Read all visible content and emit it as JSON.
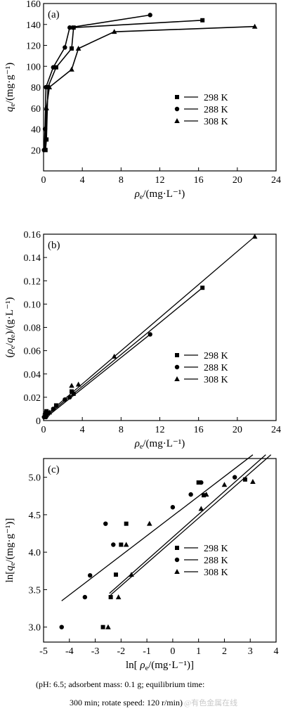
{
  "chart_data": [
    {
      "panel": "(a)",
      "type": "line",
      "xlabel": "ρ_e/(mg·L⁻¹)",
      "ylabel": "q_e/(mg·g⁻¹)",
      "xlim": [
        0,
        24
      ],
      "ylim": [
        0,
        160
      ],
      "xticks": [
        0,
        4,
        8,
        12,
        16,
        20,
        24
      ],
      "yticks": [
        20,
        40,
        60,
        80,
        100,
        120,
        140,
        160
      ],
      "legend": "center-right",
      "series": [
        {
          "name": "298 K",
          "marker": "square",
          "x": [
            0.2,
            0.3,
            0.45,
            1.3,
            2.9,
            3.1,
            16.4
          ],
          "y": [
            20,
            30,
            80,
            99,
            117,
            137,
            144
          ]
        },
        {
          "name": "288 K",
          "marker": "circle",
          "x": [
            0.05,
            0.15,
            0.25,
            1.0,
            2.2,
            2.7,
            11.0
          ],
          "y": [
            20,
            40,
            80,
            99,
            118,
            137,
            149
          ]
        },
        {
          "name": "308 K",
          "marker": "triangle",
          "x": [
            0.15,
            0.3,
            0.6,
            2.9,
            3.6,
            7.3,
            21.8
          ],
          "y": [
            20,
            60,
            80,
            97,
            117,
            133,
            138
          ]
        }
      ]
    },
    {
      "panel": "(b)",
      "type": "scatter",
      "xlabel": "ρ_e/(mg·L⁻¹)",
      "ylabel": "(ρ_e/q_e)/(g·L⁻¹)",
      "xlim": [
        0,
        24
      ],
      "ylim": [
        0,
        0.16
      ],
      "xticks": [
        0,
        4,
        8,
        12,
        16,
        20,
        24
      ],
      "yticks": [
        "0",
        "0.02",
        "0.04",
        "0.06",
        "0.08",
        "0.10",
        "0.12",
        "0.14",
        "0.16"
      ],
      "legend": "center-right",
      "series": [
        {
          "name": "298 K",
          "marker": "square",
          "x": [
            0.2,
            0.3,
            0.45,
            1.3,
            2.9,
            3.1,
            16.4
          ],
          "y": [
            0.005,
            0.008,
            0.006,
            0.013,
            0.025,
            0.023,
            0.114
          ],
          "fit": [
            [
              0,
              0.002
            ],
            [
              16.4,
              0.114
            ]
          ]
        },
        {
          "name": "288 K",
          "marker": "circle",
          "x": [
            0.05,
            0.15,
            0.25,
            1.0,
            2.2,
            2.7,
            11.0
          ],
          "y": [
            0.003,
            0.004,
            0.003,
            0.01,
            0.018,
            0.02,
            0.074
          ],
          "fit": [
            [
              0,
              0.001
            ],
            [
              11.0,
              0.074
            ]
          ]
        },
        {
          "name": "308 K",
          "marker": "triangle",
          "x": [
            0.15,
            0.3,
            0.6,
            2.9,
            3.6,
            7.3,
            21.8
          ],
          "y": [
            0.007,
            0.005,
            0.007,
            0.03,
            0.031,
            0.055,
            0.158
          ],
          "fit": [
            [
              0,
              0.003
            ],
            [
              21.8,
              0.158
            ]
          ]
        }
      ]
    },
    {
      "panel": "(c)",
      "type": "scatter",
      "xlabel": "ln[ ρ_e/(mg·L⁻¹)]",
      "ylabel": "ln[q_e/(mg·g⁻¹)]",
      "xlim": [
        -5,
        4
      ],
      "ylim": [
        2.8,
        5.25
      ],
      "xticks": [
        -5,
        -4,
        -3,
        -2,
        -1,
        0,
        1,
        2,
        3,
        4
      ],
      "yticks": [
        "3.0",
        "3.5",
        "4.0",
        "4.5",
        "5.0"
      ],
      "legend": "center-right",
      "series": [
        {
          "name": "298 K",
          "marker": "square",
          "x": [
            -2.7,
            -2.4,
            -2.2,
            -2.0,
            -1.8,
            1.2,
            1.0,
            2.8
          ],
          "y": [
            3.0,
            3.4,
            3.7,
            4.1,
            4.38,
            4.76,
            4.93,
            4.97
          ],
          "fit": [
            [
              -2.45,
              3.45
            ],
            [
              3.6,
              5.3
            ]
          ]
        },
        {
          "name": "288 K",
          "marker": "circle",
          "x": [
            -4.3,
            -3.4,
            -3.2,
            -2.6,
            -2.3,
            0,
            0.7,
            1.1,
            2.4
          ],
          "y": [
            3.0,
            3.4,
            3.69,
            4.38,
            4.1,
            4.6,
            4.77,
            4.93,
            5.0
          ],
          "fit": [
            [
              -4.3,
              3.35
            ],
            [
              3.1,
              5.3
            ]
          ]
        },
        {
          "name": "308 K",
          "marker": "triangle",
          "x": [
            -2.5,
            -2.1,
            -1.6,
            -1.8,
            -0.9,
            1.1,
            1.3,
            2.0,
            3.1
          ],
          "y": [
            3.0,
            3.4,
            3.7,
            4.1,
            4.38,
            4.58,
            4.77,
            4.9,
            4.94
          ],
          "fit": [
            [
              -2.4,
              3.43
            ],
            [
              3.8,
              5.3
            ]
          ]
        }
      ]
    }
  ],
  "caption": {
    "line1": "(pH: 6.5; adsorbent mass: 0.1 g; equilibrium time:",
    "line2": "300 min; rotate speed: 120 r/min)",
    "watermark": "@有色金属在线"
  }
}
